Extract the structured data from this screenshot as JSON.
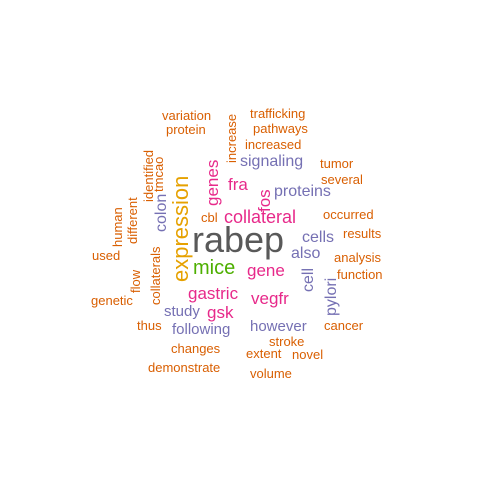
{
  "colors": {
    "rabep": "#595959",
    "expression": "#E6A100",
    "mice": "#4DAF00",
    "magenta": "#E7298A",
    "purple": "#7570B3",
    "orange": "#D95F02"
  },
  "words": [
    {
      "text": "rabep",
      "color": "#595959",
      "weight": 1.0
    },
    {
      "text": "expression",
      "color": "#E6A100",
      "weight": 0.62
    },
    {
      "text": "mice",
      "color": "#4DAF00",
      "weight": 0.55
    },
    {
      "text": "collateral",
      "color": "#E7298A",
      "weight": 0.48
    },
    {
      "text": "gastric",
      "color": "#E7298A",
      "weight": 0.45
    },
    {
      "text": "gene",
      "color": "#E7298A",
      "weight": 0.45
    },
    {
      "text": "genes",
      "color": "#E7298A",
      "weight": 0.45
    },
    {
      "text": "fra",
      "color": "#E7298A",
      "weight": 0.42
    },
    {
      "text": "fos",
      "color": "#E7298A",
      "weight": 0.42
    },
    {
      "text": "vegfr",
      "color": "#E7298A",
      "weight": 0.42
    },
    {
      "text": "gsk",
      "color": "#E7298A",
      "weight": 0.42
    },
    {
      "text": "signaling",
      "color": "#7570B3",
      "weight": 0.38
    },
    {
      "text": "proteins",
      "color": "#7570B3",
      "weight": 0.38
    },
    {
      "text": "colon",
      "color": "#7570B3",
      "weight": 0.38
    },
    {
      "text": "cells",
      "color": "#7570B3",
      "weight": 0.38
    },
    {
      "text": "also",
      "color": "#7570B3",
      "weight": 0.38
    },
    {
      "text": "cell",
      "color": "#7570B3",
      "weight": 0.38
    },
    {
      "text": "pylori",
      "color": "#7570B3",
      "weight": 0.38
    },
    {
      "text": "study",
      "color": "#7570B3",
      "weight": 0.38
    },
    {
      "text": "following",
      "color": "#7570B3",
      "weight": 0.38
    },
    {
      "text": "however",
      "color": "#7570B3",
      "weight": 0.38
    },
    {
      "text": "variation",
      "color": "#D95F02",
      "weight": 0.3
    },
    {
      "text": "protein",
      "color": "#D95F02",
      "weight": 0.3
    },
    {
      "text": "increase",
      "color": "#D95F02",
      "weight": 0.3
    },
    {
      "text": "trafficking",
      "color": "#D95F02",
      "weight": 0.3
    },
    {
      "text": "pathways",
      "color": "#D95F02",
      "weight": 0.3
    },
    {
      "text": "increased",
      "color": "#D95F02",
      "weight": 0.3
    },
    {
      "text": "tmcao",
      "color": "#D95F02",
      "weight": 0.3
    },
    {
      "text": "tumor",
      "color": "#D95F02",
      "weight": 0.3
    },
    {
      "text": "several",
      "color": "#D95F02",
      "weight": 0.3
    },
    {
      "text": "human",
      "color": "#D95F02",
      "weight": 0.3
    },
    {
      "text": "identified",
      "color": "#D95F02",
      "weight": 0.3
    },
    {
      "text": "different",
      "color": "#D95F02",
      "weight": 0.3
    },
    {
      "text": "cbl",
      "color": "#D95F02",
      "weight": 0.3
    },
    {
      "text": "occurred",
      "color": "#D95F02",
      "weight": 0.3
    },
    {
      "text": "results",
      "color": "#D95F02",
      "weight": 0.3
    },
    {
      "text": "analysis",
      "color": "#D95F02",
      "weight": 0.3
    },
    {
      "text": "used",
      "color": "#D95F02",
      "weight": 0.3
    },
    {
      "text": "flow",
      "color": "#D95F02",
      "weight": 0.3
    },
    {
      "text": "collaterals",
      "color": "#D95F02",
      "weight": 0.3
    },
    {
      "text": "function",
      "color": "#D95F02",
      "weight": 0.3
    },
    {
      "text": "genetic",
      "color": "#D95F02",
      "weight": 0.3
    },
    {
      "text": "thus",
      "color": "#D95F02",
      "weight": 0.3
    },
    {
      "text": "cancer",
      "color": "#D95F02",
      "weight": 0.3
    },
    {
      "text": "stroke",
      "color": "#D95F02",
      "weight": 0.3
    },
    {
      "text": "changes",
      "color": "#D95F02",
      "weight": 0.3
    },
    {
      "text": "extent",
      "color": "#D95F02",
      "weight": 0.3
    },
    {
      "text": "novel",
      "color": "#D95F02",
      "weight": 0.3
    },
    {
      "text": "demonstrate",
      "color": "#D95F02",
      "weight": 0.3
    },
    {
      "text": "volume",
      "color": "#D95F02",
      "weight": 0.3
    }
  ]
}
